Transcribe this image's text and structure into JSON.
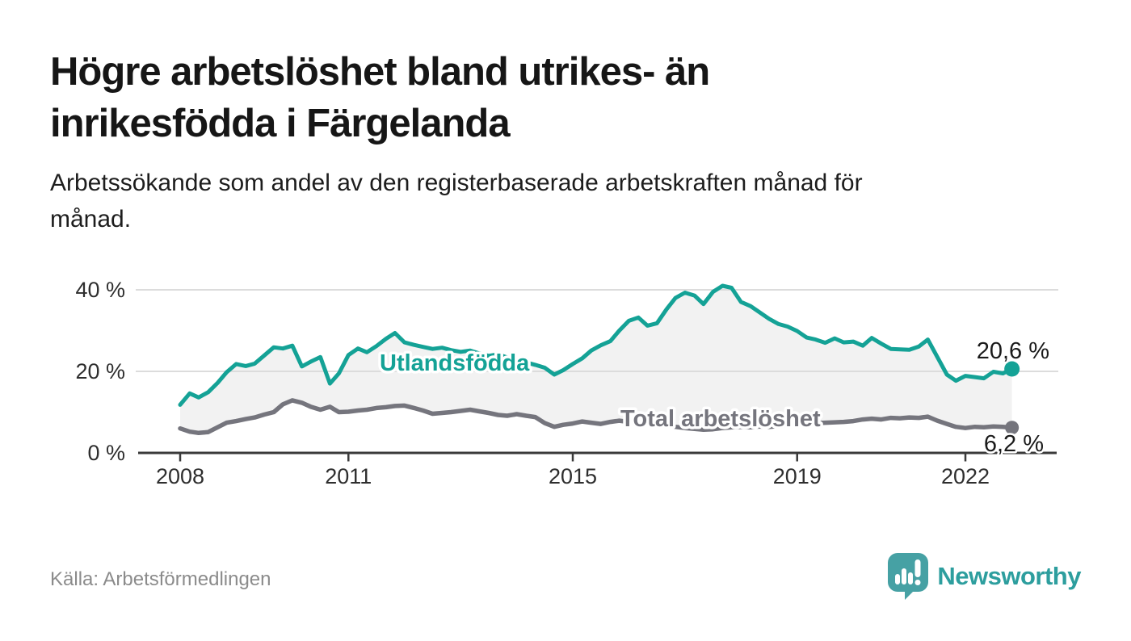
{
  "header": {
    "title_line1": "Högre arbetslöshet bland utrikes- än",
    "title_line2": "inrikesfödda i Färgelanda",
    "subtitle_line1": "Arbetssökande som andel av den registerbaserade arbetskraften månad för",
    "subtitle_line2": "månad."
  },
  "footer": {
    "source": "Källa: Arbetsförmedlingen",
    "brand": "Newsworthy",
    "brand_icon": "newsworthy-speech-bubble-bar-chart-icon"
  },
  "colors": {
    "series_foreign": "#14a296",
    "series_total": "#75757d",
    "area_fill": "#f2f2f2",
    "gridline": "#dcdcdc",
    "axis": "#3a3a3a",
    "tick_text": "#2e2e2e",
    "value_label_text": "#1a1a1a",
    "halo": "#ffffff",
    "brand_teal": "#46a1a4"
  },
  "chart_data": {
    "type": "line",
    "title": "Högre arbetslöshet bland utrikes- än inrikesfödda i Färgelanda",
    "subtitle": "Arbetssökande som andel av den registerbaserade arbetskraften månad för månad.",
    "xlabel": "",
    "ylabel": "",
    "grid": "horizontal",
    "legend_position": "inline-labels-on-lines",
    "xlim": [
      2008,
      2023.6
    ],
    "ylim": [
      0,
      45
    ],
    "x_ticks": [
      {
        "value": 2008,
        "label": "2008"
      },
      {
        "value": 2011,
        "label": "2011"
      },
      {
        "value": 2015,
        "label": "2015"
      },
      {
        "value": 2019,
        "label": "2019"
      },
      {
        "value": 2022,
        "label": "2022"
      }
    ],
    "y_ticks": [
      {
        "value": 0,
        "label": "0 %"
      },
      {
        "value": 20,
        "label": "20 %"
      },
      {
        "value": 40,
        "label": "40 %"
      }
    ],
    "area_fill_between_series": true,
    "x": [
      2008,
      2008.17,
      2008.33,
      2008.5,
      2008.67,
      2008.83,
      2009,
      2009.17,
      2009.33,
      2009.5,
      2009.67,
      2009.83,
      2010,
      2010.17,
      2010.33,
      2010.5,
      2010.67,
      2010.83,
      2011,
      2011.17,
      2011.33,
      2011.5,
      2011.67,
      2011.83,
      2012,
      2012.17,
      2012.33,
      2012.5,
      2012.67,
      2012.83,
      2013,
      2013.17,
      2013.33,
      2013.5,
      2013.67,
      2013.83,
      2014,
      2014.17,
      2014.33,
      2014.5,
      2014.67,
      2014.83,
      2015,
      2015.17,
      2015.33,
      2015.5,
      2015.67,
      2015.83,
      2016,
      2016.17,
      2016.33,
      2016.5,
      2016.67,
      2016.83,
      2017,
      2017.17,
      2017.33,
      2017.5,
      2017.67,
      2017.83,
      2018,
      2018.17,
      2018.33,
      2018.5,
      2018.67,
      2018.83,
      2019,
      2019.17,
      2019.33,
      2019.5,
      2019.67,
      2019.83,
      2020,
      2020.17,
      2020.33,
      2020.5,
      2020.67,
      2020.83,
      2021,
      2021.17,
      2021.33,
      2021.5,
      2021.67,
      2021.83,
      2022,
      2022.17,
      2022.33,
      2022.5,
      2022.67,
      2022.83
    ],
    "series": [
      {
        "name": "Utlandsfödda",
        "color": "#14a296",
        "end_label": "20,6 %",
        "end_value": 20.6,
        "values": [
          11.8,
          14.6,
          13.6,
          14.9,
          17.2,
          19.8,
          21.8,
          21.3,
          21.9,
          23.9,
          25.9,
          25.6,
          26.3,
          21.2,
          22.4,
          23.5,
          17.0,
          19.5,
          24.0,
          25.6,
          24.7,
          26.2,
          28.0,
          29.4,
          27.1,
          26.5,
          26.0,
          25.5,
          25.8,
          25.2,
          24.8,
          25.1,
          24.4,
          23.8,
          24.2,
          23.4,
          22.8,
          22.2,
          21.6,
          20.9,
          19.2,
          20.3,
          21.8,
          23.2,
          25.1,
          26.4,
          27.4,
          30.0,
          32.4,
          33.2,
          31.2,
          31.8,
          35.2,
          38.0,
          39.3,
          38.6,
          36.5,
          39.5,
          41.0,
          40.5,
          37.0,
          36.0,
          34.5,
          32.9,
          31.6,
          31.0,
          29.9,
          28.3,
          27.8,
          27.0,
          28.1,
          27.1,
          27.3,
          26.3,
          28.2,
          26.8,
          25.5,
          25.4,
          25.3,
          26.1,
          27.8,
          23.5,
          19.2,
          17.7,
          18.9,
          18.6,
          18.3,
          19.9,
          19.5,
          20.6
        ]
      },
      {
        "name": "Total arbetslöshet",
        "color": "#75757d",
        "end_label": "6,2 %",
        "end_value": 6.2,
        "values": [
          6.0,
          5.2,
          4.9,
          5.1,
          6.3,
          7.4,
          7.8,
          8.3,
          8.7,
          9.4,
          10.0,
          11.9,
          12.9,
          12.3,
          11.3,
          10.6,
          11.3,
          10.0,
          10.1,
          10.4,
          10.6,
          11.0,
          11.2,
          11.5,
          11.6,
          11.0,
          10.4,
          9.6,
          9.8,
          10.0,
          10.3,
          10.6,
          10.2,
          9.8,
          9.3,
          9.1,
          9.5,
          9.1,
          8.8,
          7.3,
          6.4,
          6.9,
          7.2,
          7.7,
          7.4,
          7.1,
          7.6,
          7.9,
          7.6,
          7.3,
          7.1,
          6.9,
          6.7,
          6.4,
          6.1,
          5.9,
          5.7,
          5.8,
          6.1,
          6.3,
          6.4,
          6.3,
          6.5,
          6.4,
          6.6,
          6.8,
          7.0,
          7.2,
          7.3,
          7.4,
          7.5,
          7.6,
          7.8,
          8.2,
          8.4,
          8.2,
          8.6,
          8.5,
          8.7,
          8.6,
          8.9,
          7.9,
          7.1,
          6.4,
          6.1,
          6.4,
          6.3,
          6.5,
          6.4,
          6.2
        ]
      }
    ]
  }
}
